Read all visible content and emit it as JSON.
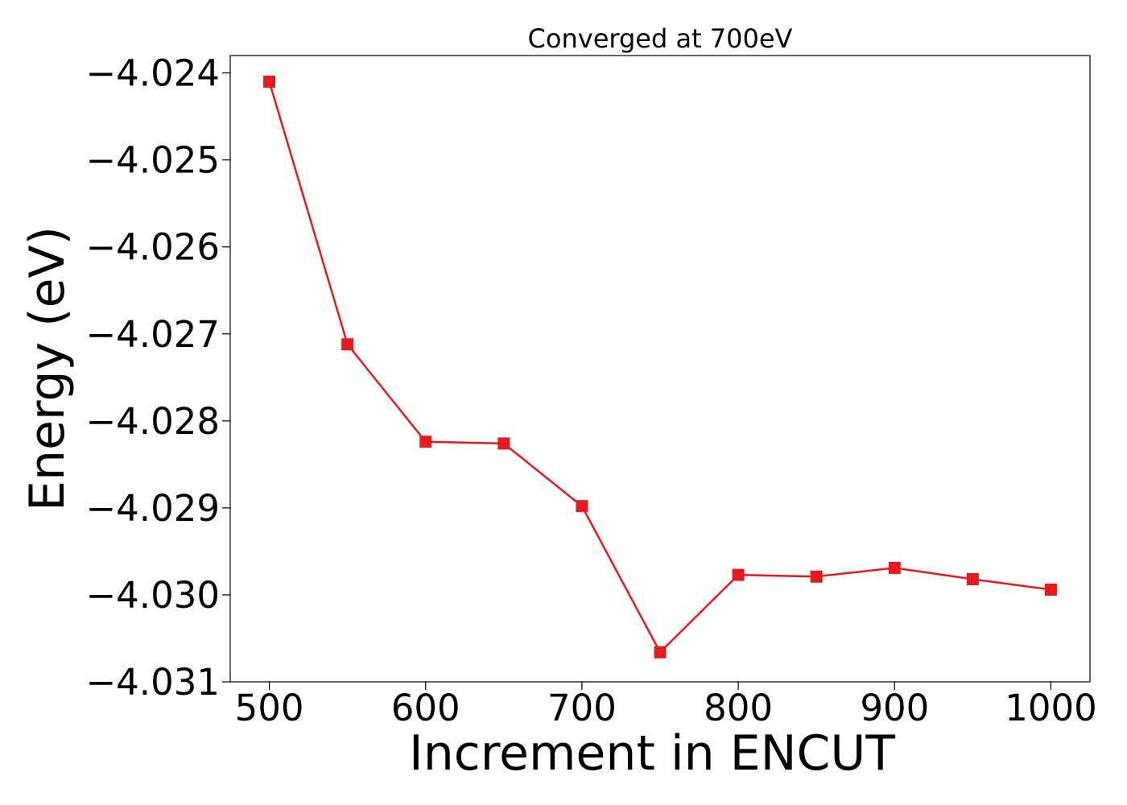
{
  "chart_data": {
    "type": "line",
    "title": "Converged at 700eV",
    "xlabel": "Increment in ENCUT",
    "ylabel": "Energy (eV)",
    "x": [
      500,
      550,
      600,
      650,
      700,
      750,
      800,
      850,
      900,
      950,
      1000
    ],
    "series": [
      {
        "values": [
          -4.0241,
          -4.02712,
          -4.02824,
          -4.02826,
          -4.02898,
          -4.03066,
          -4.02977,
          -4.02979,
          -4.02969,
          -4.02982,
          -4.02994
        ],
        "color": "#e41a1c",
        "marker": "square"
      }
    ],
    "xlim": [
      475,
      1025
    ],
    "ylim": [
      -4.031,
      -4.0238
    ],
    "xticks": [
      500,
      600,
      700,
      800,
      900,
      1000
    ],
    "xtick_labels": [
      "500",
      "600",
      "700",
      "800",
      "900",
      "1000"
    ],
    "yticks": [
      -4.024,
      -4.025,
      -4.026,
      -4.027,
      -4.028,
      -4.029,
      -4.03,
      -4.031
    ],
    "ytick_labels": [
      "−4.024",
      "−4.025",
      "−4.026",
      "−4.027",
      "−4.028",
      "−4.029",
      "−4.030",
      "−4.031"
    ],
    "grid": false,
    "legend": "none"
  }
}
